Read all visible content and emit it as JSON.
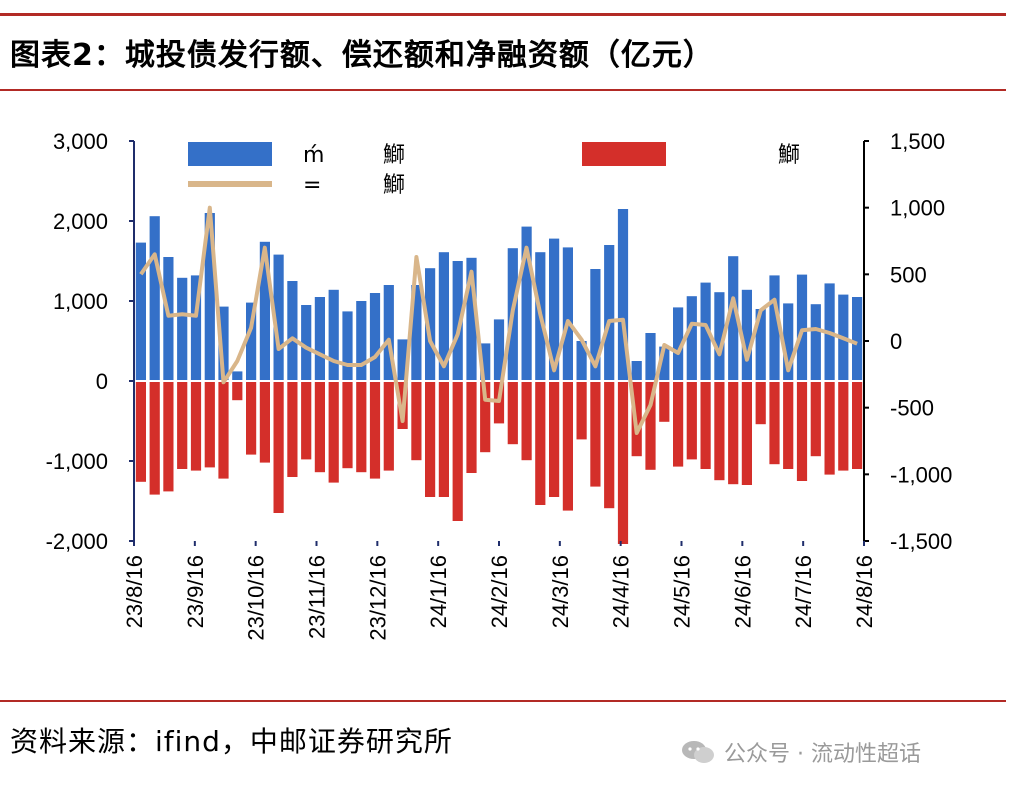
{
  "title": "图表2：城投债发行额、偿还额和净融资额（亿元）",
  "source": "资料来源：ifind，中邮证券研究所",
  "watermark": "公众号 · 流动性超话",
  "colors": {
    "issuance": "#3470c8",
    "repayment": "#d42f2a",
    "net": "#d9b68a",
    "rule": "#b22a25",
    "axis": "#1f2d6b"
  },
  "chart_data": {
    "type": "bar+line",
    "legend": [
      {
        "label": "ḿ",
        "extra": "鰤",
        "type": "bar",
        "color": "#3470c8"
      },
      {
        "label": "=",
        "extra": "鰤",
        "type": "line",
        "color": "#d9b68a"
      },
      {
        "label": "",
        "extra": "鰤",
        "type": "bar",
        "color": "#d42f2a"
      }
    ],
    "left_axis": {
      "min": -2000,
      "max": 3000,
      "ticks": [
        "3,000",
        "2,000",
        "1,000",
        "0",
        "-1,000",
        "-2,000"
      ]
    },
    "right_axis": {
      "min": -1500,
      "max": 1500,
      "ticks": [
        "1,500",
        "1,000",
        "500",
        "0",
        "-500",
        "-1,000",
        "-1,500"
      ]
    },
    "x_labels": [
      "23/8/16",
      "23/9/16",
      "23/10/16",
      "23/11/16",
      "23/12/16",
      "24/1/16",
      "24/2/16",
      "24/3/16",
      "24/4/16",
      "24/5/16",
      "24/6/16",
      "24/7/16",
      "24/8/16"
    ],
    "weeks": 53,
    "series": [
      {
        "name": "发行额",
        "axis": "left",
        "values": [
          1730,
          2060,
          1550,
          1290,
          1320,
          2100,
          930,
          120,
          980,
          1740,
          1580,
          1250,
          950,
          1050,
          1140,
          870,
          1000,
          1100,
          1200,
          520,
          1200,
          1410,
          1610,
          1500,
          1540,
          470,
          770,
          1660,
          1930,
          1610,
          1780,
          1670,
          500,
          1400,
          1700,
          2150,
          250,
          600,
          430,
          920,
          1060,
          1230,
          1110,
          1560,
          1140,
          900,
          1320,
          970,
          1330,
          960,
          1220,
          1080,
          1050
        ],
        "_note": ""
      },
      {
        "name": "偿还额",
        "axis": "left",
        "values": [
          -1260,
          -1420,
          -1380,
          -1100,
          -1120,
          -1080,
          -1220,
          -240,
          -920,
          -1020,
          -1650,
          -1200,
          -980,
          -1140,
          -1270,
          -1090,
          -1140,
          -1220,
          -1120,
          -600,
          -990,
          -1450,
          -1450,
          -1750,
          -1150,
          -890,
          -530,
          -790,
          -990,
          -1550,
          -1450,
          -1620,
          -730,
          -1320,
          -1590,
          -2100,
          -940,
          -1110,
          -510,
          -1070,
          -980,
          -1100,
          -1240,
          -1290,
          -1300,
          -540,
          -1040,
          -1100,
          -1250,
          -940,
          -1170,
          -1120,
          -1100
        ],
        "_note": ""
      },
      {
        "name": "净融资额",
        "axis": "right",
        "values": [
          500,
          650,
          190,
          200,
          190,
          1000,
          -310,
          -150,
          100,
          700,
          -60,
          20,
          -50,
          -100,
          -150,
          -180,
          -180,
          -120,
          10,
          -600,
          630,
          0,
          -190,
          50,
          520,
          -440,
          -450,
          230,
          700,
          200,
          -220,
          150,
          10,
          -190,
          150,
          160,
          -690,
          -480,
          -30,
          -90,
          130,
          120,
          -100,
          320,
          -140,
          230,
          310,
          -220,
          80,
          90,
          60,
          20,
          -20
        ]
      }
    ]
  }
}
